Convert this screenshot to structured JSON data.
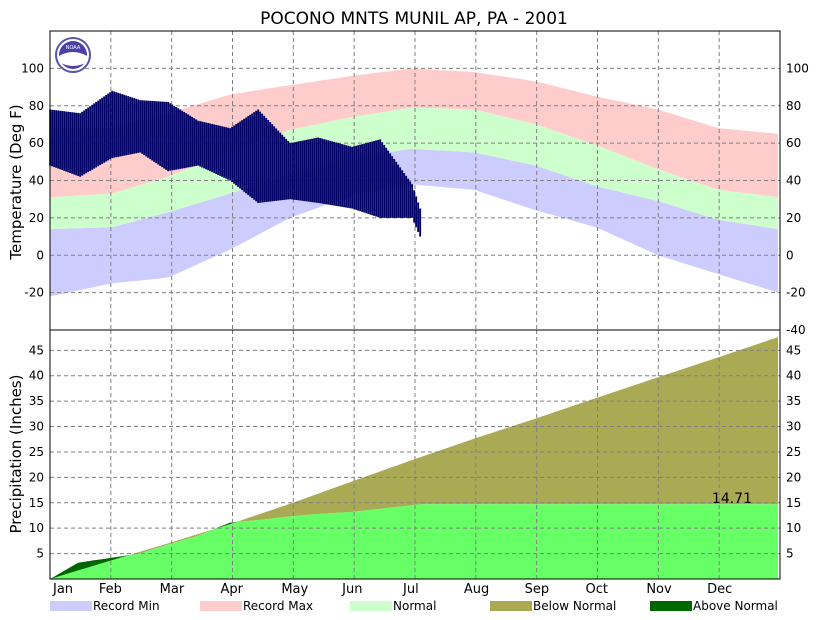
{
  "chart_data": [
    {
      "type": "area",
      "title": "POCONO MNTS MUNIL AP, PA - 2001",
      "ylabel": "Temperature (Deg F)",
      "ylim": [
        -40,
        120
      ],
      "yticks": [
        -40,
        -20,
        0,
        20,
        40,
        60,
        80,
        100
      ],
      "xtick_labels": [
        "Jan",
        "Feb",
        "Mar",
        "Apr",
        "May",
        "Jun",
        "Jul",
        "Aug",
        "Sep",
        "Oct",
        "Nov",
        "Dec"
      ],
      "grid": true,
      "series": [
        {
          "name": "Record Min",
          "color": "#ccccff",
          "x": [
            1,
            32,
            60,
            91,
            121,
            152,
            182,
            213,
            244,
            274,
            305,
            335,
            365
          ],
          "values": [
            -22,
            -15,
            -12,
            3,
            20,
            32,
            38,
            35,
            24,
            15,
            0,
            -10,
            -20
          ]
        },
        {
          "name": "Record Max",
          "color": "#ffcccc",
          "x": [
            1,
            32,
            60,
            91,
            121,
            152,
            182,
            213,
            244,
            274,
            305,
            335,
            365
          ],
          "values": [
            68,
            68,
            76,
            86,
            91,
            96,
            100,
            98,
            93,
            85,
            78,
            68,
            65
          ]
        },
        {
          "name": "Normal",
          "color": "#ccffcc",
          "x": [
            1,
            32,
            60,
            91,
            121,
            152,
            182,
            213,
            244,
            274,
            305,
            335,
            365
          ],
          "low": [
            14,
            15,
            23,
            33,
            43,
            52,
            57,
            55,
            48,
            37,
            29,
            19,
            14
          ],
          "high": [
            31,
            33,
            42,
            55,
            67,
            74,
            79,
            78,
            70,
            59,
            46,
            35,
            31
          ]
        },
        {
          "name": "Observed",
          "color": "#000066",
          "x": [
            1,
            16,
            32,
            46,
            60,
            75,
            91,
            105,
            121,
            135,
            152,
            166,
            182,
            186
          ],
          "high": [
            78,
            76,
            88,
            83,
            82,
            72,
            68,
            78,
            60,
            63,
            58,
            62,
            38,
            25
          ],
          "low": [
            48,
            42,
            52,
            55,
            45,
            48,
            40,
            28,
            30,
            28,
            25,
            20,
            20,
            10
          ]
        }
      ]
    },
    {
      "type": "area",
      "ylabel": "Precipitation (Inches)",
      "ylim": [
        0,
        49
      ],
      "yticks": [
        5,
        10,
        15,
        20,
        25,
        30,
        35,
        40,
        45
      ],
      "xtick_labels": [
        "Jan",
        "Feb",
        "Mar",
        "Apr",
        "May",
        "Jun",
        "Jul",
        "Aug",
        "Sep",
        "Oct",
        "Nov",
        "Dec"
      ],
      "annotation": "14.71",
      "series": [
        {
          "name": "Normal",
          "color": "#66ff66",
          "x": [
            1,
            32,
            60,
            91,
            121,
            152,
            182,
            213,
            244,
            274,
            305,
            335,
            365
          ],
          "values": [
            0,
            3.7,
            7.0,
            10.8,
            14.8,
            19.2,
            23.4,
            27.6,
            31.6,
            35.6,
            39.7,
            43.6,
            47.6
          ]
        },
        {
          "name": "Observed",
          "color": "#006600",
          "x": [
            1,
            15,
            32,
            46,
            60,
            75,
            91,
            105,
            121,
            135,
            152,
            166,
            182,
            186,
            365
          ],
          "values": [
            0,
            3.2,
            4.2,
            5.0,
            6.8,
            8.5,
            11.1,
            11.6,
            12.3,
            12.8,
            13.2,
            13.8,
            14.5,
            14.71,
            14.71
          ]
        }
      ]
    }
  ],
  "legend": {
    "record_min": "Record Min",
    "record_max": "Record Max",
    "normal": "Normal",
    "below_normal": "Below Normal",
    "above_normal": "Above Normal",
    "colors": {
      "record_min": "#ccccff",
      "record_max": "#ffcccc",
      "normal": "#ccffcc",
      "below_normal": "#aaaa55",
      "above_normal": "#006600"
    }
  },
  "logo": {
    "text": "NOAA"
  }
}
